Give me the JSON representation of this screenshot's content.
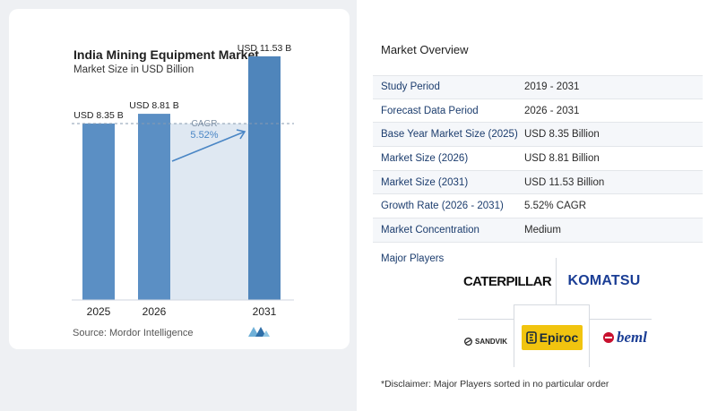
{
  "chart": {
    "title": "India Mining Equipment Market",
    "subtitle": "Market Size in USD Billion",
    "source": "Source: Mordor Intelligence",
    "cagr_label": "CAGR",
    "cagr_value": "5.52%"
  },
  "chart_data": {
    "type": "bar",
    "title": "India Mining Equipment Market",
    "subtitle": "Market Size in USD Billion",
    "categories": [
      "2025",
      "2026",
      "2031"
    ],
    "values": [
      8.35,
      8.81,
      11.53
    ],
    "data_labels": [
      "USD 8.35 B",
      "USD 8.81 B",
      "USD 11.53 B"
    ],
    "ylim": [
      0,
      12.5
    ],
    "reference_line": 8.35,
    "annotation": {
      "text": "CAGR 5.52%",
      "from": "2026",
      "to": "2031"
    },
    "colors": {
      "bar": "#5b8fc4",
      "bar_last": "#4f85bb",
      "shade": "#dfe8f2",
      "arrow": "#4a86c5"
    },
    "grid": false
  },
  "overview": {
    "title": "Market Overview",
    "rows": [
      {
        "label": "Study Period",
        "value": "2019 - 2031"
      },
      {
        "label": "Forecast Data Period",
        "value": "2026 - 2031"
      },
      {
        "label": "Base Year Market Size (2025)",
        "value": "USD 8.35 Billion"
      },
      {
        "label": "Market Size (2026)",
        "value": "USD 8.81 Billion"
      },
      {
        "label": "Market Size (2031)",
        "value": "USD 11.53 Billion"
      },
      {
        "label": "Growth Rate (2026 - 2031)",
        "value": "5.52% CAGR"
      },
      {
        "label": "Market Concentration",
        "value": "Medium"
      }
    ]
  },
  "players": {
    "label": "Major Players",
    "logos": {
      "caterpillar": "CATERPILLAR",
      "komatsu": "KOMATSU",
      "sandvik": "SANDVIK",
      "epiroc": "Epiroc",
      "beml": "beml"
    }
  },
  "disclaimer": "*Disclaimer: Major Players sorted in no particular order"
}
